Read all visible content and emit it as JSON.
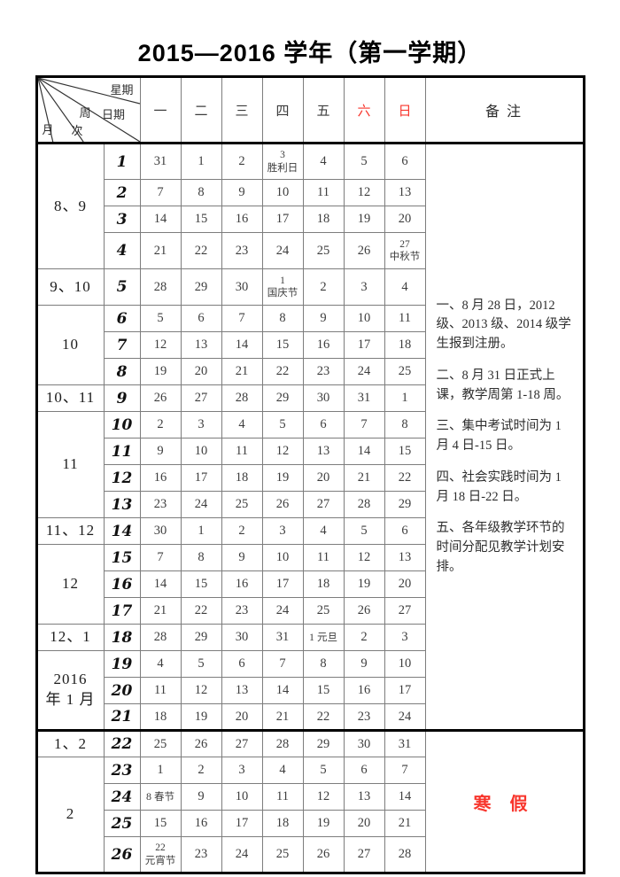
{
  "title": "2015—2016 学年（第一学期）",
  "colors": {
    "weekend_red": "#f8352c",
    "grid_thin": "#7d7d7d",
    "grid_thick": "#000000"
  },
  "header": {
    "corner": {
      "weekday_label": "星期",
      "date_label": "日期",
      "week_label": "周",
      "order_label": "次",
      "month_label": "月"
    },
    "weekdays": [
      {
        "label": "一",
        "red": false
      },
      {
        "label": "二",
        "red": false
      },
      {
        "label": "三",
        "red": false
      },
      {
        "label": "四",
        "red": false
      },
      {
        "label": "五",
        "red": false
      },
      {
        "label": "六",
        "red": true
      },
      {
        "label": "日",
        "red": true
      }
    ],
    "remarks_label": "备  注"
  },
  "calendar": {
    "month_groups": [
      {
        "label": "8、9",
        "rows": 4
      },
      {
        "label": "9、10",
        "rows": 1
      },
      {
        "label": "10",
        "rows": 3
      },
      {
        "label": "10、11",
        "rows": 1
      },
      {
        "label": "11",
        "rows": 4
      },
      {
        "label": "11、12",
        "rows": 1
      },
      {
        "label": "12",
        "rows": 3
      },
      {
        "label": "12、1",
        "rows": 1
      },
      {
        "label": "2016\n年 1 月",
        "rows": 3
      },
      {
        "label": "1、2",
        "rows": 1
      },
      {
        "label": "2",
        "rows": 4
      }
    ],
    "weeks": [
      {
        "num": "1",
        "tall": true,
        "days": [
          {
            "d": "31"
          },
          {
            "d": "1"
          },
          {
            "d": "2"
          },
          {
            "d": "3",
            "h": "胜利日",
            "layout": "stack"
          },
          {
            "d": "4"
          },
          {
            "d": "5"
          },
          {
            "d": "6"
          }
        ]
      },
      {
        "num": "2",
        "tall": false,
        "days": [
          {
            "d": "7"
          },
          {
            "d": "8"
          },
          {
            "d": "9"
          },
          {
            "d": "10"
          },
          {
            "d": "11"
          },
          {
            "d": "12"
          },
          {
            "d": "13"
          }
        ]
      },
      {
        "num": "3",
        "tall": false,
        "days": [
          {
            "d": "14"
          },
          {
            "d": "15"
          },
          {
            "d": "16"
          },
          {
            "d": "17"
          },
          {
            "d": "18"
          },
          {
            "d": "19"
          },
          {
            "d": "20"
          }
        ]
      },
      {
        "num": "4",
        "tall": true,
        "days": [
          {
            "d": "21"
          },
          {
            "d": "22"
          },
          {
            "d": "23"
          },
          {
            "d": "24"
          },
          {
            "d": "25"
          },
          {
            "d": "26"
          },
          {
            "d": "27",
            "h": "中秋节",
            "layout": "stack"
          }
        ]
      },
      {
        "num": "5",
        "tall": true,
        "days": [
          {
            "d": "28"
          },
          {
            "d": "29"
          },
          {
            "d": "30"
          },
          {
            "d": "1",
            "h": "国庆节",
            "layout": "stack"
          },
          {
            "d": "2"
          },
          {
            "d": "3"
          },
          {
            "d": "4"
          }
        ]
      },
      {
        "num": "6",
        "tall": false,
        "days": [
          {
            "d": "5"
          },
          {
            "d": "6"
          },
          {
            "d": "7"
          },
          {
            "d": "8"
          },
          {
            "d": "9"
          },
          {
            "d": "10"
          },
          {
            "d": "11"
          }
        ]
      },
      {
        "num": "7",
        "tall": false,
        "days": [
          {
            "d": "12"
          },
          {
            "d": "13"
          },
          {
            "d": "14"
          },
          {
            "d": "15"
          },
          {
            "d": "16"
          },
          {
            "d": "17"
          },
          {
            "d": "18"
          }
        ]
      },
      {
        "num": "8",
        "tall": false,
        "days": [
          {
            "d": "19"
          },
          {
            "d": "20"
          },
          {
            "d": "21"
          },
          {
            "d": "22"
          },
          {
            "d": "23"
          },
          {
            "d": "24"
          },
          {
            "d": "25"
          }
        ]
      },
      {
        "num": "9",
        "tall": false,
        "days": [
          {
            "d": "26"
          },
          {
            "d": "27"
          },
          {
            "d": "28"
          },
          {
            "d": "29"
          },
          {
            "d": "30"
          },
          {
            "d": "31"
          },
          {
            "d": "1"
          }
        ]
      },
      {
        "num": "10",
        "tall": false,
        "days": [
          {
            "d": "2"
          },
          {
            "d": "3"
          },
          {
            "d": "4"
          },
          {
            "d": "5"
          },
          {
            "d": "6"
          },
          {
            "d": "7"
          },
          {
            "d": "8"
          }
        ]
      },
      {
        "num": "11",
        "tall": false,
        "days": [
          {
            "d": "9"
          },
          {
            "d": "10"
          },
          {
            "d": "11"
          },
          {
            "d": "12"
          },
          {
            "d": "13"
          },
          {
            "d": "14"
          },
          {
            "d": "15"
          }
        ]
      },
      {
        "num": "12",
        "tall": false,
        "days": [
          {
            "d": "16"
          },
          {
            "d": "17"
          },
          {
            "d": "18"
          },
          {
            "d": "19"
          },
          {
            "d": "20"
          },
          {
            "d": "21"
          },
          {
            "d": "22"
          }
        ]
      },
      {
        "num": "13",
        "tall": false,
        "days": [
          {
            "d": "23"
          },
          {
            "d": "24"
          },
          {
            "d": "25"
          },
          {
            "d": "26"
          },
          {
            "d": "27"
          },
          {
            "d": "28"
          },
          {
            "d": "29"
          }
        ]
      },
      {
        "num": "14",
        "tall": false,
        "days": [
          {
            "d": "30"
          },
          {
            "d": "1"
          },
          {
            "d": "2"
          },
          {
            "d": "3"
          },
          {
            "d": "4"
          },
          {
            "d": "5"
          },
          {
            "d": "6"
          }
        ]
      },
      {
        "num": "15",
        "tall": false,
        "days": [
          {
            "d": "7"
          },
          {
            "d": "8"
          },
          {
            "d": "9"
          },
          {
            "d": "10"
          },
          {
            "d": "11"
          },
          {
            "d": "12"
          },
          {
            "d": "13"
          }
        ]
      },
      {
        "num": "16",
        "tall": false,
        "days": [
          {
            "d": "14"
          },
          {
            "d": "15"
          },
          {
            "d": "16"
          },
          {
            "d": "17"
          },
          {
            "d": "18"
          },
          {
            "d": "19"
          },
          {
            "d": "20"
          }
        ]
      },
      {
        "num": "17",
        "tall": false,
        "days": [
          {
            "d": "21"
          },
          {
            "d": "22"
          },
          {
            "d": "23"
          },
          {
            "d": "24"
          },
          {
            "d": "25"
          },
          {
            "d": "26"
          },
          {
            "d": "27"
          }
        ]
      },
      {
        "num": "18",
        "tall": false,
        "days": [
          {
            "d": "28"
          },
          {
            "d": "29"
          },
          {
            "d": "30"
          },
          {
            "d": "31"
          },
          {
            "d": "1",
            "h": "元旦",
            "layout": "inline"
          },
          {
            "d": "2"
          },
          {
            "d": "3"
          }
        ]
      },
      {
        "num": "19",
        "tall": false,
        "days": [
          {
            "d": "4"
          },
          {
            "d": "5"
          },
          {
            "d": "6"
          },
          {
            "d": "7"
          },
          {
            "d": "8"
          },
          {
            "d": "9"
          },
          {
            "d": "10"
          }
        ]
      },
      {
        "num": "20",
        "tall": false,
        "days": [
          {
            "d": "11"
          },
          {
            "d": "12"
          },
          {
            "d": "13"
          },
          {
            "d": "14"
          },
          {
            "d": "15"
          },
          {
            "d": "16"
          },
          {
            "d": "17"
          }
        ]
      },
      {
        "num": "21",
        "tall": false,
        "days": [
          {
            "d": "18"
          },
          {
            "d": "19"
          },
          {
            "d": "20"
          },
          {
            "d": "21"
          },
          {
            "d": "22"
          },
          {
            "d": "23"
          },
          {
            "d": "24"
          }
        ]
      },
      {
        "num": "22",
        "tall": false,
        "days": [
          {
            "d": "25"
          },
          {
            "d": "26"
          },
          {
            "d": "27"
          },
          {
            "d": "28"
          },
          {
            "d": "29"
          },
          {
            "d": "30"
          },
          {
            "d": "31"
          }
        ]
      },
      {
        "num": "23",
        "tall": false,
        "days": [
          {
            "d": "1"
          },
          {
            "d": "2"
          },
          {
            "d": "3"
          },
          {
            "d": "4"
          },
          {
            "d": "5"
          },
          {
            "d": "6"
          },
          {
            "d": "7"
          }
        ]
      },
      {
        "num": "24",
        "tall": false,
        "days": [
          {
            "d": "8",
            "h": "春节",
            "layout": "inline"
          },
          {
            "d": "9"
          },
          {
            "d": "10"
          },
          {
            "d": "11"
          },
          {
            "d": "12"
          },
          {
            "d": "13"
          },
          {
            "d": "14"
          }
        ]
      },
      {
        "num": "25",
        "tall": false,
        "days": [
          {
            "d": "15"
          },
          {
            "d": "16"
          },
          {
            "d": "17"
          },
          {
            "d": "18"
          },
          {
            "d": "19"
          },
          {
            "d": "20"
          },
          {
            "d": "21"
          }
        ]
      },
      {
        "num": "26",
        "tall": true,
        "days": [
          {
            "d": "22",
            "h": "元宵节",
            "layout": "stack"
          },
          {
            "d": "23"
          },
          {
            "d": "24"
          },
          {
            "d": "25"
          },
          {
            "d": "26"
          },
          {
            "d": "27"
          },
          {
            "d": "28"
          }
        ]
      }
    ]
  },
  "remarks": {
    "notes": [
      "一、8 月 28 日，2012 级、2013 级、2014 级学生报到注册。",
      "二、8 月 31 日正式上课，教学周第 1-18 周。",
      "三、集中考试时间为 1 月 4 日-15 日。",
      "四、社会实践时间为 1 月 18 日-22 日。",
      "五、各年级教学环节的时间分配见教学计划安排。"
    ],
    "vacation": "寒  假"
  }
}
